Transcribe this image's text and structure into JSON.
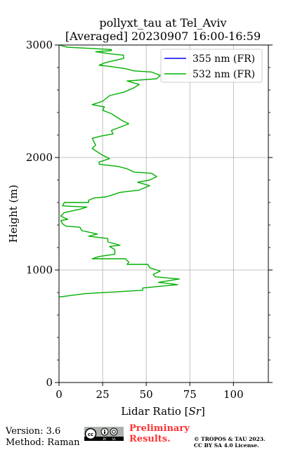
{
  "chart_data": {
    "type": "line",
    "title_line1": "pollyxt_tau at Tel_Aviv",
    "title_line2": "[Averaged] 20230907 16:00-16:59",
    "xlabel": "Lidar Ratio [Sr]",
    "xlabel_prefix": "Lidar Ratio [",
    "xlabel_unit": "Sr",
    "xlabel_suffix": "]",
    "ylabel": "Height (m)",
    "xlim": [
      0,
      120
    ],
    "ylim": [
      0,
      3000
    ],
    "xticks": [
      0,
      25,
      50,
      75,
      100
    ],
    "yticks": [
      0,
      1000,
      2000,
      3000
    ],
    "grid": true,
    "legend_position": "top-right",
    "series": [
      {
        "name": "355 nm (FR)",
        "color": "#0000ff",
        "x": [],
        "y": []
      },
      {
        "name": "532 nm (FR)",
        "color": "#00b000",
        "x": [
          0,
          15,
          48,
          48,
          68,
          57,
          69,
          55,
          54,
          58,
          56,
          52,
          51,
          39,
          40,
          38,
          19,
          23,
          32,
          32,
          29,
          35,
          28,
          28,
          17,
          22,
          13,
          12,
          4,
          2,
          1,
          5,
          1,
          3,
          12,
          16,
          2,
          3,
          17,
          17,
          20,
          27,
          31,
          35,
          46,
          52,
          45,
          52,
          56,
          53,
          43,
          39,
          34,
          23,
          23,
          29,
          25,
          22,
          19,
          21,
          20,
          19,
          24,
          31,
          30,
          40,
          36,
          33,
          30,
          25,
          26,
          19,
          25,
          29,
          37,
          43,
          46,
          39,
          56,
          58,
          53,
          43,
          38,
          29,
          23,
          26,
          31,
          37,
          37,
          30,
          21,
          30,
          30,
          5,
          0
        ],
        "y": [
          760,
          790,
          820,
          840,
          870,
          890,
          920,
          940,
          960,
          990,
          1000,
          1020,
          1050,
          1050,
          1070,
          1100,
          1100,
          1120,
          1140,
          1180,
          1210,
          1220,
          1250,
          1280,
          1300,
          1320,
          1350,
          1380,
          1390,
          1410,
          1440,
          1450,
          1480,
          1510,
          1540,
          1560,
          1570,
          1600,
          1600,
          1620,
          1640,
          1650,
          1670,
          1690,
          1710,
          1750,
          1780,
          1800,
          1830,
          1860,
          1870,
          1900,
          1920,
          1940,
          1960,
          1990,
          2020,
          2050,
          2080,
          2110,
          2140,
          2170,
          2190,
          2210,
          2240,
          2300,
          2330,
          2360,
          2390,
          2420,
          2450,
          2470,
          2500,
          2550,
          2580,
          2620,
          2650,
          2680,
          2700,
          2730,
          2760,
          2770,
          2790,
          2810,
          2820,
          2840,
          2860,
          2880,
          2910,
          2920,
          2940,
          2950,
          2960,
          2980,
          3000
        ]
      }
    ]
  },
  "footer": {
    "version": "Version: 3.6",
    "method": "Method: Raman",
    "license_badge": "cc-by-sa-badge",
    "preliminary_line1": "Preliminary",
    "preliminary_line2": "Results.",
    "preliminary_color": "#ff3333",
    "copyright_line1": "© TROPOS & TAU 2023.",
    "copyright_line2": "CC BY SA 4.0 License."
  }
}
